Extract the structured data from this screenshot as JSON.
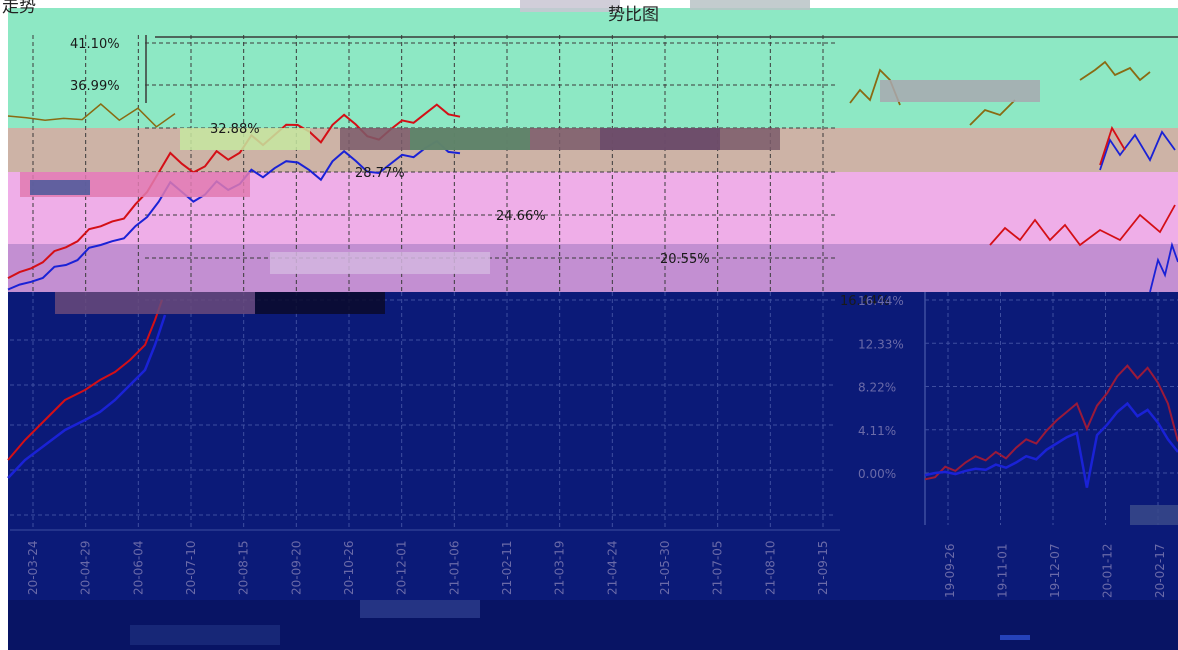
{
  "title": "势比图",
  "title_left": "走势",
  "colors": {
    "band_green": "#8de8c4",
    "band_tan": "#cdb3a6",
    "band_pink": "#efaee8",
    "band_mauve": "#c38fd2",
    "band_navy": "#0b1a78",
    "band_deep": "#081464",
    "grid_dark": "#3a3a3a",
    "grid_light": "#3e4ea0",
    "line_red": "#d40f16",
    "line_blue": "#1a22d6",
    "line_olive": "#8a6a12"
  },
  "chart_data": [
    {
      "type": "line",
      "panel": "left",
      "y_ticks": [
        "41.10%",
        "36.99%",
        "32.88%",
        "28.77%",
        "24.66%",
        "20.55%",
        "16.44%"
      ],
      "ylim": [
        16.44,
        41.1
      ],
      "x_ticks": [
        "20-03-24",
        "20-04-29",
        "20-06-04",
        "20-07-10",
        "20-08-15",
        "20-09-20",
        "20-10-26",
        "20-12-01",
        "21-01-06",
        "21-02-11",
        "21-03-19",
        "21-04-24",
        "21-05-30",
        "21-07-05",
        "21-08-10",
        "21-09-15"
      ],
      "grid": true,
      "series": [
        {
          "values": [
            18.2,
            19.0,
            19.6,
            20.4,
            20.9,
            21.5,
            22.3,
            22.9,
            23.4,
            24.1,
            24.6,
            25.4,
            26.8,
            28.9,
            30.2,
            29.4,
            28.8,
            29.6,
            30.5,
            29.9,
            30.8,
            31.9,
            31.2,
            32.4,
            33.6,
            33.0,
            32.6,
            31.8,
            32.9,
            34.1,
            33.4,
            32.5,
            31.6,
            32.8,
            33.9,
            33.1,
            34.2,
            35.3,
            34.6,
            33.8
          ]
        },
        {
          "values": [
            17.1,
            17.8,
            18.3,
            18.9,
            19.4,
            19.8,
            20.5,
            21.1,
            21.6,
            22.2,
            22.7,
            23.3,
            24.4,
            26.1,
            27.4,
            26.7,
            26.0,
            26.9,
            27.6,
            27.0,
            27.8,
            28.6,
            28.1,
            29.2,
            30.1,
            29.4,
            28.9,
            28.2,
            29.4,
            30.6,
            29.9,
            29.1,
            28.4,
            29.5,
            30.6,
            29.8,
            30.9,
            31.8,
            31.0,
            30.3
          ]
        },
        {
          "values": [
            34.0,
            34.6,
            33.9,
            34.8,
            34.2,
            35.0,
            34.4,
            34.9,
            34.1,
            34.7
          ]
        }
      ]
    },
    {
      "type": "line",
      "panel": "right",
      "y_ticks": [
        "16.44%",
        "12.33%",
        "8.22%",
        "4.11%",
        "0.00%"
      ],
      "ylim": [
        -2,
        16.44
      ],
      "x_ticks": [
        "19-09-26",
        "19-11-01",
        "19-12-07",
        "20-01-12",
        "20-02-17"
      ],
      "grid": true,
      "series": [
        {
          "values": [
            -0.6,
            -0.4,
            0.6,
            0.2,
            1.0,
            1.6,
            1.2,
            2.0,
            1.4,
            2.4,
            3.2,
            2.8,
            4.0,
            5.0,
            5.8,
            6.6,
            4.2,
            6.4,
            7.6,
            9.2,
            10.2,
            9.0,
            10.0,
            8.6,
            6.6,
            3.0
          ]
        },
        {
          "values": [
            -0.2,
            0.0,
            0.1,
            -0.1,
            0.2,
            0.4,
            0.3,
            0.8,
            0.5,
            1.0,
            1.6,
            1.3,
            2.2,
            2.8,
            3.4,
            3.8,
            -1.4,
            3.6,
            4.6,
            5.8,
            6.6,
            5.4,
            6.0,
            4.8,
            3.2,
            2.0
          ]
        }
      ]
    }
  ]
}
